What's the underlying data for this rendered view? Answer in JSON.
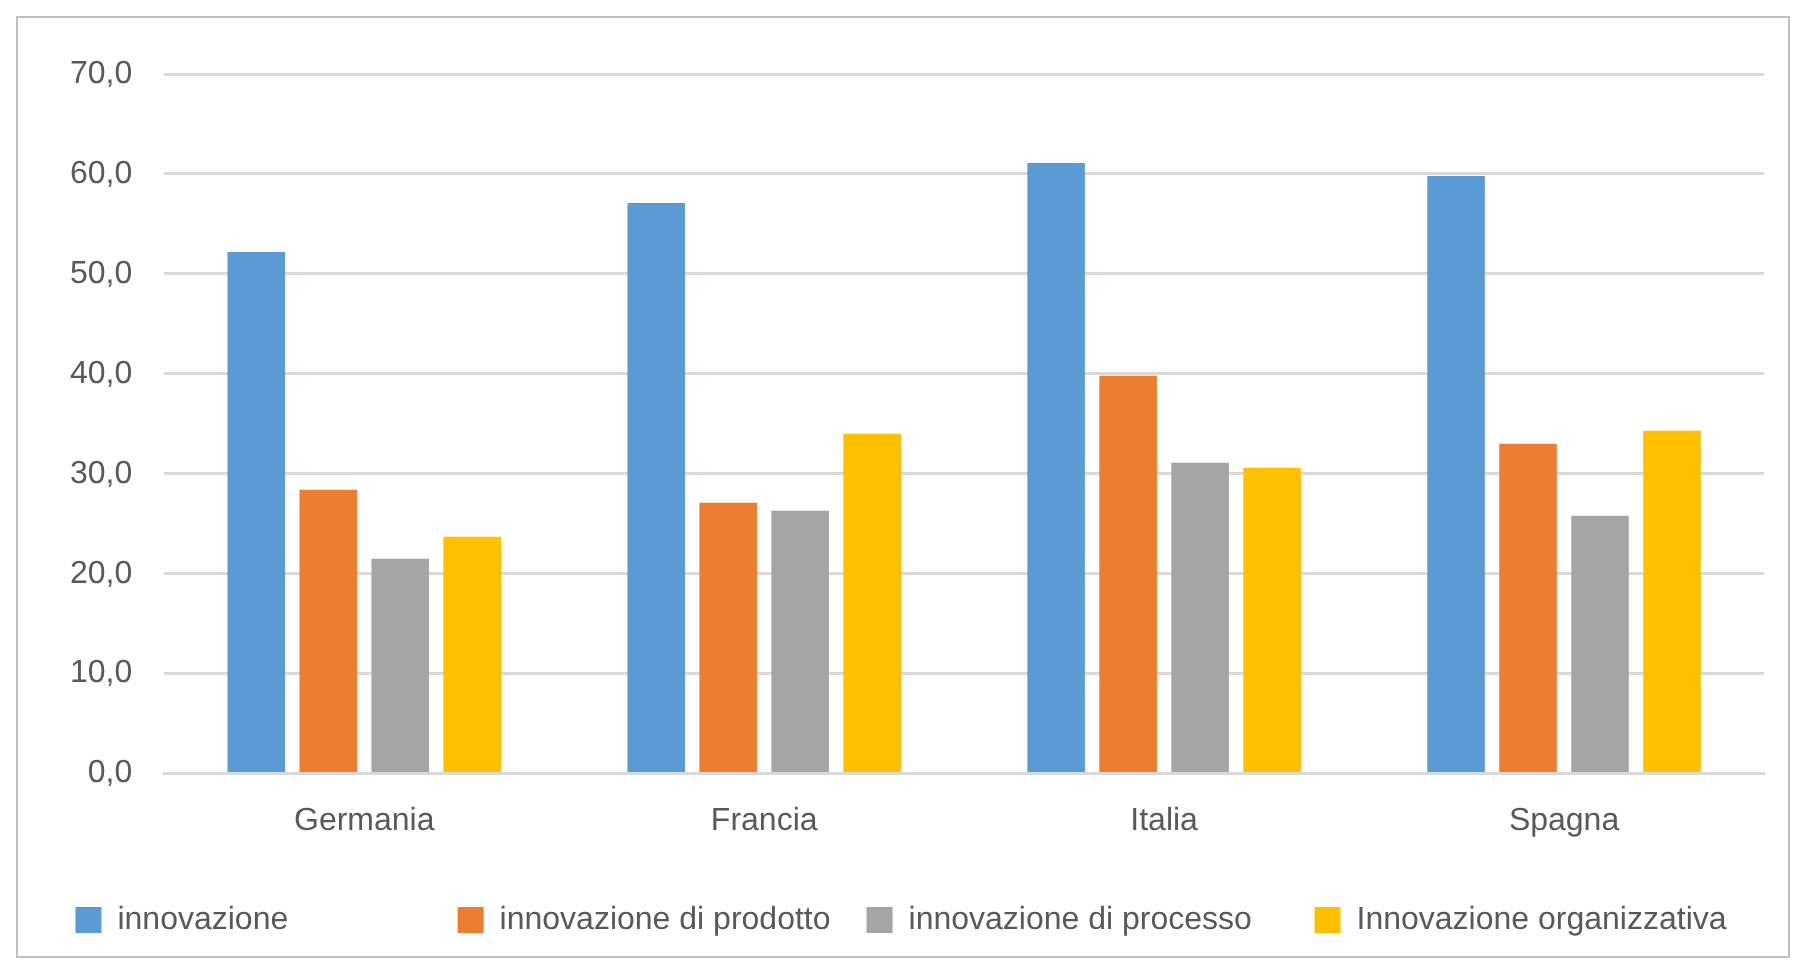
{
  "chart_data": {
    "type": "bar",
    "categories": [
      "Germania",
      "Francia",
      "Italia",
      "Spagna"
    ],
    "series": [
      {
        "name": "innovazione",
        "color": "#5b9bd5",
        "values": [
          52.2,
          57.1,
          61.1,
          59.8
        ]
      },
      {
        "name": "innovazione di prodotto",
        "color": "#ed7d31",
        "values": [
          28.4,
          27.1,
          39.8,
          33.0
        ]
      },
      {
        "name": "innovazione di processo",
        "color": "#a5a5a5",
        "values": [
          21.5,
          26.3,
          31.1,
          25.8
        ]
      },
      {
        "name": "Innovazione organizzativa",
        "color": "#ffc000",
        "values": [
          23.7,
          34.0,
          30.6,
          34.3
        ]
      }
    ],
    "ylim": [
      0,
      70
    ],
    "yticks": [
      {
        "value": 0,
        "label": "0,0"
      },
      {
        "value": 10,
        "label": "10,0"
      },
      {
        "value": 20,
        "label": "20,0"
      },
      {
        "value": 30,
        "label": "30,0"
      },
      {
        "value": 40,
        "label": "40,0"
      },
      {
        "value": 50,
        "label": "50,0"
      },
      {
        "value": 60,
        "label": "60,0"
      },
      {
        "value": 70,
        "label": "70,0"
      }
    ],
    "grid": "y",
    "legend": "bottom"
  }
}
